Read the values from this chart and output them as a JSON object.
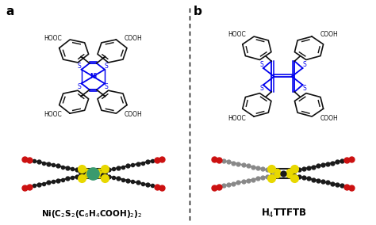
{
  "fig_width": 4.74,
  "fig_height": 2.84,
  "dpi": 100,
  "bg_color": "#ffffff",
  "label_a": "a",
  "label_b": "b",
  "mol_box_color": "#dff0f5",
  "structure_blue": "#0000ee",
  "structure_black": "#111111",
  "atom_green": "#3a9a6e",
  "atom_yellow": "#e8d800",
  "atom_red": "#cc1111",
  "atom_gray": "#888888",
  "atom_dark": "#1a1a1a",
  "atom_darkgray": "#555555",
  "formula_left": "Ni(C$_2$S$_2$(C$_6$H$_4$COOH)$_2$)$_2$",
  "formula_right": "H$_4$TTFTB"
}
